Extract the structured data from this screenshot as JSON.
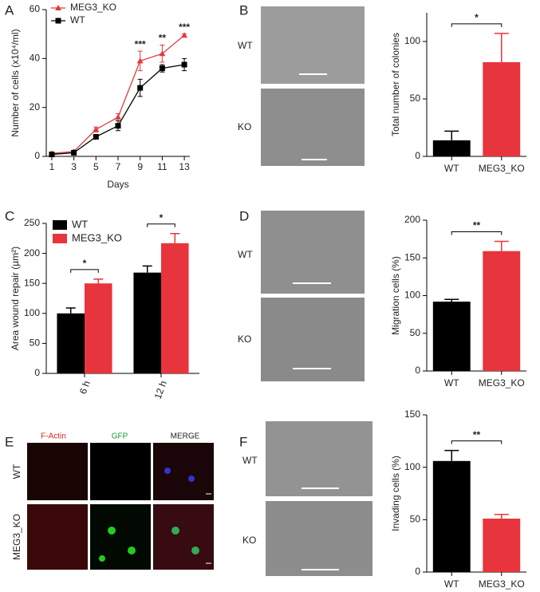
{
  "panel_labels": [
    "A",
    "B",
    "C",
    "D",
    "E",
    "F"
  ],
  "images": {
    "B": {
      "row_labels": [
        "WT",
        "KO"
      ]
    },
    "D": {
      "row_labels": [
        "WT",
        "KO"
      ]
    },
    "E": {
      "column_labels": [
        "F-Actin",
        "GFP",
        "MERGE"
      ],
      "row_labels": [
        "WT",
        "MEG3_KO"
      ]
    },
    "F": {
      "row_labels": [
        "WT",
        "KO"
      ]
    }
  },
  "chart_data": [
    {
      "type": "line",
      "x_label": "Days",
      "y_label": "Number of cells (x10⁴/ml)",
      "x": [
        1,
        3,
        5,
        7,
        9,
        11,
        13
      ],
      "xlim": [
        0.5,
        13.5
      ],
      "xticks": [
        1,
        3,
        5,
        7,
        9,
        11,
        13
      ],
      "ylim": [
        0,
        60
      ],
      "yticks": [
        0,
        20,
        40,
        60
      ],
      "legend": "upper left",
      "series": [
        {
          "name": "MEG3_KO",
          "color": "#e03a3e",
          "marker": "triangle",
          "values": [
            1.2,
            2,
            11,
            16,
            39,
            42,
            49.5
          ],
          "errors": [
            0.3,
            0.3,
            1,
            1.5,
            4,
            3.5,
            0.5
          ]
        },
        {
          "name": "WT",
          "color": "#000000",
          "marker": "square",
          "values": [
            0.8,
            1.5,
            8,
            12.5,
            28,
            36,
            37.5
          ],
          "errors": [
            0.3,
            0.3,
            0.5,
            2,
            3.5,
            1.5,
            2.5
          ]
        }
      ],
      "annotations": [
        {
          "x": 9,
          "text": "***"
        },
        {
          "x": 11,
          "text": "**"
        },
        {
          "x": 13,
          "text": "***"
        }
      ]
    },
    {
      "type": "bar",
      "y_label": "Total number of colonies",
      "categories": [
        "WT",
        "MEG3_KO"
      ],
      "values": [
        14,
        82
      ],
      "errors": [
        8,
        25
      ],
      "colors": [
        "#000000",
        "#e8343c"
      ],
      "ylim": [
        0,
        125
      ],
      "yticks": [
        0,
        50,
        100
      ],
      "significance": "*"
    },
    {
      "type": "grouped_bar",
      "y_label": "Area wound repair (µm²)",
      "categories": [
        "6 h",
        "12 h"
      ],
      "ylim": [
        0,
        250
      ],
      "yticks": [
        0,
        50,
        100,
        150,
        200,
        250
      ],
      "legend": "upper left",
      "series": [
        {
          "name": "WT",
          "color": "#000000",
          "values": [
            100,
            168
          ],
          "errors": [
            9,
            11
          ]
        },
        {
          "name": "MEG3_KO",
          "color": "#e8343c",
          "values": [
            150,
            217
          ],
          "errors": [
            7,
            16
          ]
        }
      ],
      "significance": [
        "*",
        "*"
      ]
    },
    {
      "type": "bar",
      "y_label": "Migration cells (%)",
      "categories": [
        "WT",
        "MEG3_KO"
      ],
      "values": [
        92,
        159
      ],
      "errors": [
        3,
        13
      ],
      "colors": [
        "#000000",
        "#e8343c"
      ],
      "ylim": [
        0,
        200
      ],
      "yticks": [
        0,
        50,
        100,
        150,
        200
      ],
      "significance": "**"
    },
    {
      "type": "bar",
      "y_label": "Invading cells (%)",
      "categories": [
        "WT",
        "MEG3_KO"
      ],
      "values": [
        106,
        51
      ],
      "errors": [
        10,
        4
      ],
      "colors": [
        "#000000",
        "#e8343c"
      ],
      "ylim": [
        0,
        150
      ],
      "yticks": [
        0,
        50,
        100,
        150
      ],
      "significance": "**"
    }
  ]
}
